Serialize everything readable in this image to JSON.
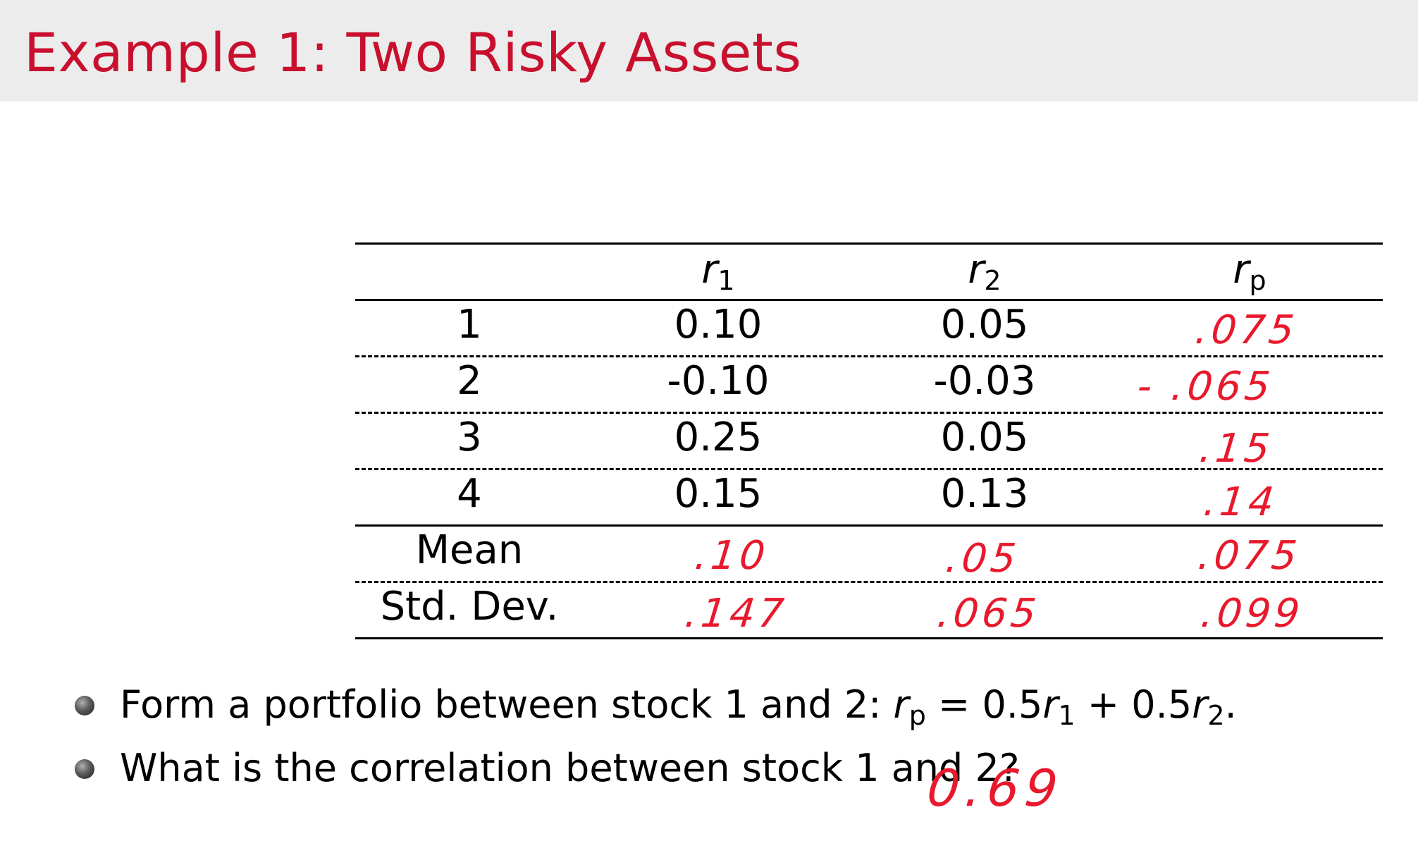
{
  "slide": {
    "title": "Example 1: Two Risky Assets"
  },
  "table": {
    "headers": [
      {
        "base": "r",
        "sub": "1"
      },
      {
        "base": "r",
        "sub": "2"
      },
      {
        "base": "r",
        "sub": "p"
      }
    ],
    "rows": [
      {
        "label": "1",
        "r1": "0.10",
        "r2": "0.05"
      },
      {
        "label": "2",
        "r1": "-0.10",
        "r2": "-0.03"
      },
      {
        "label": "3",
        "r1": "0.25",
        "r2": "0.05"
      },
      {
        "label": "4",
        "r1": "0.15",
        "r2": "0.13"
      }
    ],
    "summary": [
      {
        "label": "Mean"
      },
      {
        "label": "Std. Dev."
      }
    ],
    "annotations": {
      "rp_values": [
        ".075",
        "- .065",
        ".15",
        ".14"
      ],
      "mean": [
        ".10",
        ".05",
        ".075"
      ],
      "std": [
        ".147",
        ".065",
        ".099"
      ]
    }
  },
  "bullets": {
    "item1_text": "Form a portfolio between stock 1 and 2: ",
    "item1_formula": {
      "lhs": "r",
      "lhs_sub": "p",
      "eq": " = 0.5",
      "t1": "r",
      "t1_sub": "1",
      "plus": " + 0.5",
      "t2": "r",
      "t2_sub": "2",
      "end": "."
    },
    "item2_text": "What is the correlation between stock 1 and 2?",
    "answer": "0.69"
  },
  "colors": {
    "title": "#c8102e",
    "handwriting": "#e8192c",
    "title_bar_bg": "#ececec"
  }
}
